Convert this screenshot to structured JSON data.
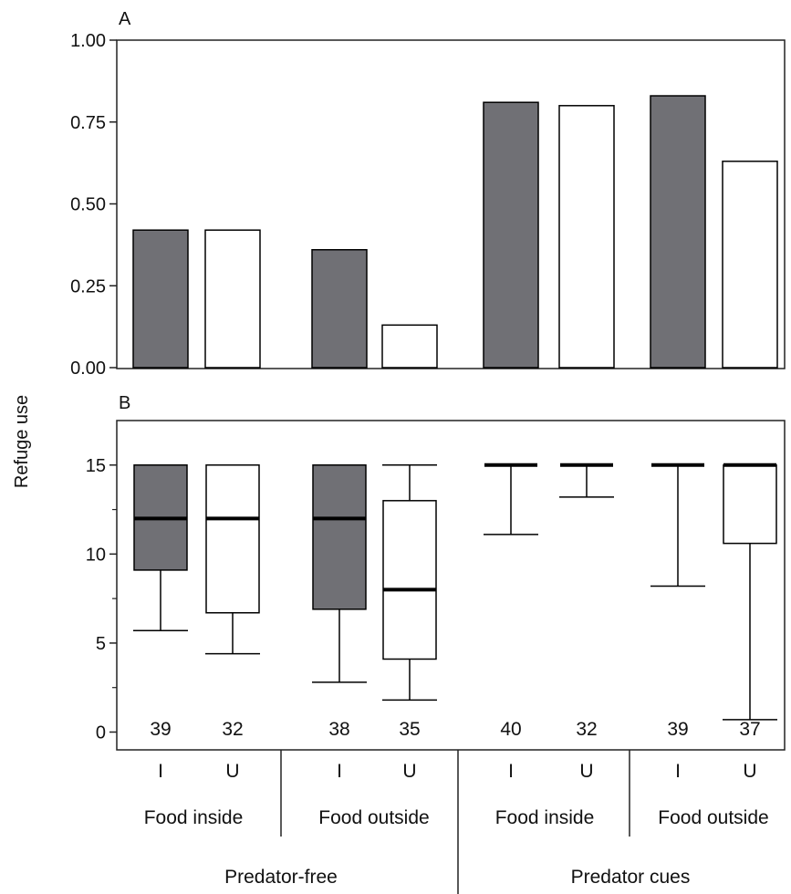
{
  "colors": {
    "infected": "#707075",
    "uninfected": "#ffffff",
    "line": "#000000"
  },
  "chart_data": [
    {
      "type": "bar",
      "panel_label": "A",
      "ylabel": "Refuge use",
      "ylim": [
        0,
        1
      ],
      "yticks": [
        "0.00",
        "0.25",
        "0.50",
        "0.75",
        "1.00"
      ],
      "bars": [
        {
          "group": "Food inside",
          "context": "Predator-free",
          "fill": "infected",
          "value": 0.42
        },
        {
          "group": "Food inside",
          "context": "Predator-free",
          "fill": "uninfected",
          "value": 0.42
        },
        {
          "group": "Food outside",
          "context": "Predator-free",
          "fill": "infected",
          "value": 0.36
        },
        {
          "group": "Food outside",
          "context": "Predator-free",
          "fill": "uninfected",
          "value": 0.13
        },
        {
          "group": "Food inside",
          "context": "Predator cues",
          "fill": "infected",
          "value": 0.81
        },
        {
          "group": "Food inside",
          "context": "Predator cues",
          "fill": "uninfected",
          "value": 0.8
        },
        {
          "group": "Food outside",
          "context": "Predator cues",
          "fill": "infected",
          "value": 0.83
        },
        {
          "group": "Food outside",
          "context": "Predator cues",
          "fill": "uninfected",
          "value": 0.63
        }
      ]
    },
    {
      "type": "box",
      "panel_label": "B",
      "ylim": [
        -1,
        17.5
      ],
      "yticks": [
        "0",
        "5",
        "10",
        "15"
      ],
      "boxes": [
        {
          "category": "I",
          "fill": "infected",
          "n": "39",
          "lower_whisker": 5.7,
          "q1": 9.1,
          "median": 12,
          "q3": 15,
          "upper_whisker": 15
        },
        {
          "category": "U",
          "fill": "uninfected",
          "n": "32",
          "lower_whisker": 4.4,
          "q1": 6.7,
          "median": 12,
          "q3": 15,
          "upper_whisker": 15
        },
        {
          "category": "I",
          "fill": "infected",
          "n": "38",
          "lower_whisker": 2.8,
          "q1": 6.9,
          "median": 12,
          "q3": 15,
          "upper_whisker": 15
        },
        {
          "category": "U",
          "fill": "uninfected",
          "n": "35",
          "lower_whisker": 1.8,
          "q1": 4.1,
          "median": 8,
          "q3": 13,
          "upper_whisker": 15
        },
        {
          "category": "I",
          "fill": "infected",
          "n": "40",
          "lower_whisker": 11.1,
          "q1": 15,
          "median": 15,
          "q3": 15,
          "upper_whisker": 15
        },
        {
          "category": "U",
          "fill": "uninfected",
          "n": "32",
          "lower_whisker": 13.2,
          "q1": 15,
          "median": 15,
          "q3": 15,
          "upper_whisker": 15
        },
        {
          "category": "I",
          "fill": "infected",
          "n": "39",
          "lower_whisker": 8.2,
          "q1": 15,
          "median": 15,
          "q3": 15,
          "upper_whisker": 15
        },
        {
          "category": "U",
          "fill": "uninfected",
          "n": "37",
          "lower_whisker": 0.7,
          "q1": 10.6,
          "median": 15,
          "q3": 15,
          "upper_whisker": 15
        }
      ],
      "groups": [
        "Food inside",
        "Food outside",
        "Food inside",
        "Food outside"
      ],
      "contexts": [
        "Predator-free",
        "Predator cues"
      ]
    }
  ]
}
